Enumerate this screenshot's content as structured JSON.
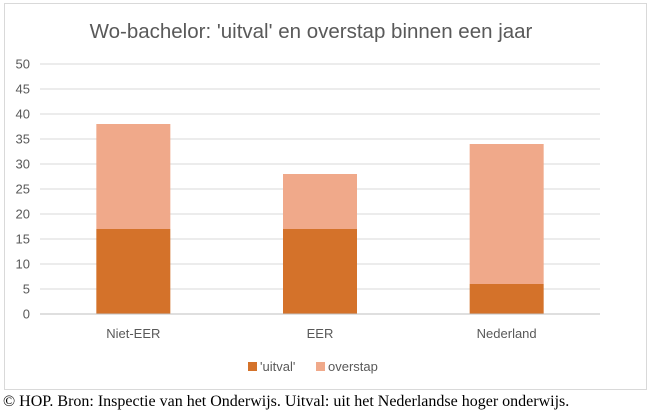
{
  "chart_data": {
    "type": "bar",
    "stacked": true,
    "title": "Wo-bachelor: 'uitval' en overstap binnen een jaar",
    "categories": [
      "Niet-EER",
      "EER",
      "Nederland"
    ],
    "series": [
      {
        "name": "'uitval'",
        "values": [
          17,
          17,
          6
        ],
        "color": "#d4722a"
      },
      {
        "name": "overstap",
        "values": [
          21,
          11,
          28
        ],
        "color": "#f0a98a"
      }
    ],
    "ylim": [
      0,
      50
    ],
    "yticks": [
      "0",
      "5",
      "10",
      "15",
      "20",
      "25",
      "30",
      "35",
      "40",
      "45",
      "50"
    ],
    "grid": true,
    "legend": "bottom"
  },
  "caption": "© HOP. Bron: Inspectie van het Onderwijs. Uitval: uit het Nederlandse hoger onderwijs."
}
